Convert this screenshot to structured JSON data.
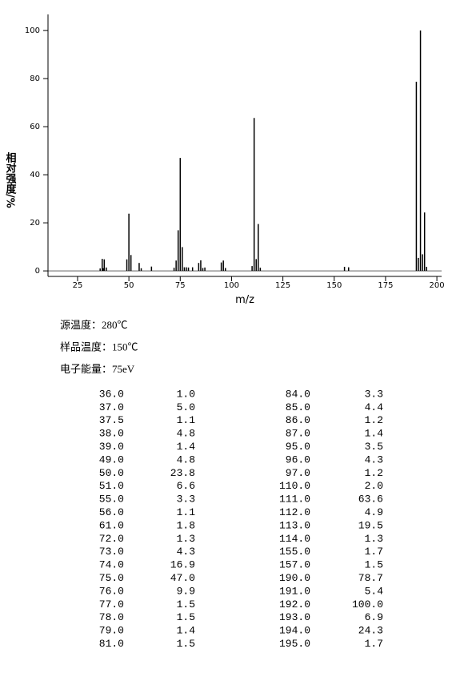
{
  "chart_data": {
    "type": "stem",
    "x_label": "m/z",
    "y_label": "相对强度/%",
    "xlim": [
      10.6,
      202.3
    ],
    "xticks": [
      25,
      50,
      75,
      100,
      125,
      150,
      175,
      200
    ],
    "ylim": [
      -2.3,
      106.7
    ],
    "yticks": [
      0,
      20,
      40,
      60,
      80,
      100
    ],
    "color": "#000000",
    "x": [
      36.0,
      37.0,
      37.5,
      38.0,
      39.0,
      49.0,
      50.0,
      51.0,
      55.0,
      56.0,
      61.0,
      72.0,
      73.0,
      74.0,
      75.0,
      76.0,
      77.0,
      78.0,
      79.0,
      81.0,
      84.0,
      85.0,
      86.0,
      87.0,
      95.0,
      96.0,
      97.0,
      110.0,
      111.0,
      112.0,
      113.0,
      114.0,
      155.0,
      157.0,
      190.0,
      191.0,
      192.0,
      193.0,
      194.0,
      195.0
    ],
    "x_labels": [
      "36.0",
      "37.0",
      "37.5",
      "38.0",
      "39.0",
      "49.0",
      "50.0",
      "51.0",
      "55.0",
      "56.0",
      "61.0",
      "72.0",
      "73.0",
      "74.0",
      "75.0",
      "76.0",
      "77.0",
      "78.0",
      "79.0",
      "81.0",
      "84.0",
      "85.0",
      "86.0",
      "87.0",
      "95.0",
      "96.0",
      "97.0",
      "110.0",
      "111.0",
      "112.0",
      "113.0",
      "114.0",
      "155.0",
      "157.0",
      "190.0",
      "191.0",
      "192.0",
      "193.0",
      "194.0",
      "195.0"
    ],
    "values": [
      1.0,
      5.0,
      1.1,
      4.8,
      1.4,
      4.8,
      23.8,
      6.6,
      3.3,
      1.1,
      1.8,
      1.3,
      4.3,
      16.9,
      47.0,
      9.9,
      1.5,
      1.5,
      1.4,
      1.5,
      3.3,
      4.4,
      1.2,
      1.4,
      3.5,
      4.3,
      1.2,
      2.0,
      63.6,
      4.9,
      19.5,
      1.3,
      1.7,
      1.5,
      78.7,
      5.4,
      100.0,
      6.9,
      24.3,
      1.7
    ],
    "value_labels": [
      "1.0",
      "5.0",
      "1.1",
      "4.8",
      "1.4",
      "4.8",
      "23.8",
      "6.6",
      "3.3",
      "1.1",
      "1.8",
      "1.3",
      "4.3",
      "16.9",
      "47.0",
      "9.9",
      "1.5",
      "1.5",
      "1.4",
      "1.5",
      "3.3",
      "4.4",
      "1.2",
      "1.4",
      "3.5",
      "4.3",
      "1.2",
      "2.0",
      "63.6",
      "4.9",
      "19.5",
      "1.3",
      "1.7",
      "1.5",
      "78.7",
      "5.4",
      "100.0",
      "6.9",
      "24.3",
      "1.7"
    ]
  },
  "conditions": [
    "源温度：280℃",
    "样品温度：150℃",
    "电子能量：75eV"
  ]
}
